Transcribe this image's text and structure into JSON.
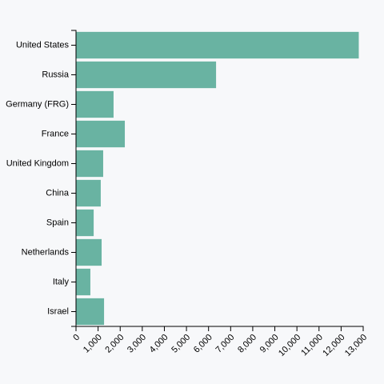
{
  "chart_data": {
    "type": "bar",
    "orientation": "horizontal",
    "color": "#69b3a2",
    "categories": [
      "United States",
      "Russia",
      "Germany (FRG)",
      "France",
      "United Kingdom",
      "China",
      "Spain",
      "Netherlands",
      "Italy",
      "Israel"
    ],
    "values": [
      12800,
      6340,
      1700,
      2210,
      1230,
      1120,
      800,
      1160,
      650,
      1270
    ],
    "xlim": [
      0,
      13000
    ],
    "xticks": [
      0,
      {
        "value": 1000,
        "label": "1,000"
      },
      {
        "value": 2000,
        "label": "2,000"
      },
      {
        "value": 3000,
        "label": "3,000"
      },
      {
        "value": 4000,
        "label": "4,000"
      },
      {
        "value": 5000,
        "label": "5,000"
      },
      {
        "value": 6000,
        "label": "6,000"
      },
      {
        "value": 7000,
        "label": "7,000"
      },
      {
        "value": 8000,
        "label": "8,000"
      },
      {
        "value": 9000,
        "label": "9,000"
      },
      {
        "value": 10000,
        "label": "10,000"
      },
      {
        "value": 11000,
        "label": "11,000"
      },
      {
        "value": 12000,
        "label": "12,000"
      },
      {
        "value": 13000,
        "label": "13,000"
      }
    ]
  }
}
